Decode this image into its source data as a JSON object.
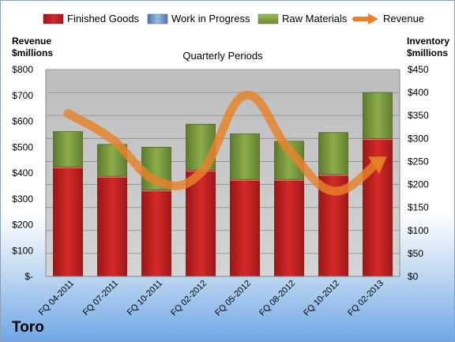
{
  "chart_data": {
    "type": "bar",
    "subtitle": "Quarterly Periods",
    "brand": "Toro",
    "left_axis_title": [
      "Revenue",
      "$millions"
    ],
    "right_axis_title": [
      "Inventory",
      "$millions"
    ],
    "categories": [
      "FQ 04-2011",
      "FQ 07-2011",
      "FQ 10-2011",
      "FQ 02-2012",
      "FQ 05-2012",
      "FQ 08-2012",
      "FQ 10-2012",
      "FQ 02-2013"
    ],
    "left_ticks": [
      "$-",
      "$100",
      "$200",
      "$300",
      "$400",
      "$500",
      "$600",
      "$700",
      "$800"
    ],
    "right_ticks": [
      "$0",
      "$50",
      "$100",
      "$150",
      "$200",
      "$250",
      "$300",
      "$350",
      "$400",
      "$450"
    ],
    "ylim_left": [
      0,
      800
    ],
    "ylim_right": [
      0,
      450
    ],
    "series": [
      {
        "name": "Finished Goods",
        "axis": "right",
        "color": "#c00000",
        "values": [
          238,
          218,
          188,
          231,
          211,
          211,
          222,
          300
        ]
      },
      {
        "name": "Work in Progress",
        "axis": "right",
        "color": "#4f81bd",
        "values": [
          0,
          0,
          0,
          0,
          0,
          0,
          0,
          0
        ]
      },
      {
        "name": "Raw Materials",
        "axis": "right",
        "color": "#77933c",
        "values": [
          77,
          69,
          93,
          100,
          99,
          83,
          91,
          100
        ]
      },
      {
        "name": "Revenue",
        "axis": "left",
        "color": "#e8822a",
        "values": [
          630,
          530,
          370,
          400,
          700,
          490,
          330,
          440
        ]
      }
    ],
    "grid": true,
    "legend_position": "top"
  }
}
